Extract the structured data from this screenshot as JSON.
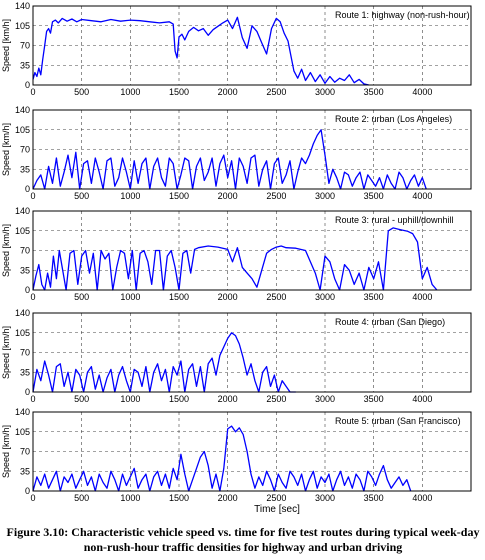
{
  "figure": {
    "caption": "Figure 3.10: Characteristic vehicle speed vs. time for five test routes during typical week-day non-rush-hour traffic densities for highway and urban driving",
    "xlabel": "Time [sec]"
  },
  "chart_data": [
    {
      "type": "line",
      "title": "Route 1: highway (non-rush-hour)",
      "ylabel": "Speed [km/h]",
      "xlabel": "",
      "xlim": [
        0,
        4500
      ],
      "ylim": [
        0,
        140
      ],
      "xticks": [
        0,
        500,
        1000,
        1500,
        2000,
        2500,
        3000,
        3500,
        4000
      ],
      "yticks": [
        0,
        35,
        70,
        105,
        140
      ],
      "grid": true,
      "color": "#0000ff",
      "series": [
        {
          "x": [
            0,
            20,
            40,
            60,
            80,
            100,
            120,
            140,
            160,
            180,
            200,
            230,
            260,
            300,
            350,
            400,
            450,
            500,
            600,
            700,
            800,
            900,
            1000,
            1100,
            1200,
            1300,
            1400,
            1440,
            1460,
            1480,
            1500,
            1530,
            1560,
            1600,
            1650,
            1700,
            1750,
            1800,
            1850,
            1900,
            1950,
            2000,
            2050,
            2100,
            2150,
            2200,
            2250,
            2300,
            2350,
            2400,
            2450,
            2500,
            2540,
            2580,
            2620,
            2650,
            2680,
            2720,
            2760,
            2800,
            2850,
            2900,
            2950,
            3000,
            3050,
            3100,
            3150,
            3200,
            3250,
            3300,
            3350,
            3400,
            3450
          ],
          "values": [
            10,
            22,
            15,
            30,
            18,
            45,
            70,
            95,
            100,
            92,
            112,
            115,
            110,
            118,
            113,
            117,
            112,
            116,
            114,
            112,
            116,
            113,
            115,
            114,
            112,
            110,
            112,
            108,
            60,
            48,
            85,
            90,
            80,
            95,
            102,
            96,
            100,
            88,
            98,
            104,
            110,
            115,
            100,
            120,
            84,
            65,
            105,
            95,
            75,
            55,
            100,
            118,
            112,
            92,
            78,
            52,
            25,
            12,
            28,
            8,
            22,
            6,
            18,
            3,
            15,
            5,
            12,
            8,
            18,
            4,
            10,
            2,
            0
          ]
        }
      ]
    },
    {
      "type": "line",
      "title": "Route 2: urban (Los Angeles)",
      "ylabel": "Speed [km/h]",
      "xlabel": "",
      "xlim": [
        0,
        4500
      ],
      "ylim": [
        0,
        140
      ],
      "xticks": [
        0,
        500,
        1000,
        1500,
        2000,
        2500,
        3000,
        3500,
        4000
      ],
      "yticks": [
        0,
        35,
        70,
        105,
        140
      ],
      "grid": true,
      "color": "#0000ff",
      "series": [
        {
          "x": [
            0,
            40,
            80,
            120,
            160,
            200,
            240,
            280,
            320,
            360,
            400,
            440,
            480,
            520,
            560,
            600,
            640,
            680,
            720,
            760,
            800,
            840,
            880,
            920,
            960,
            1000,
            1040,
            1080,
            1120,
            1160,
            1200,
            1240,
            1280,
            1320,
            1360,
            1400,
            1440,
            1480,
            1520,
            1560,
            1600,
            1640,
            1680,
            1720,
            1760,
            1800,
            1840,
            1880,
            1920,
            1960,
            2000,
            2040,
            2080,
            2120,
            2160,
            2200,
            2240,
            2280,
            2320,
            2360,
            2400,
            2440,
            2480,
            2520,
            2560,
            2600,
            2640,
            2680,
            2720,
            2760,
            2800,
            2840,
            2880,
            2920,
            2960,
            3000,
            3040,
            3080,
            3120,
            3160,
            3200,
            3240,
            3280,
            3320,
            3360,
            3400,
            3440,
            3480,
            3520,
            3560,
            3600,
            3640,
            3680,
            3720,
            3760,
            3800,
            3840,
            3880,
            3920,
            3960,
            4000,
            4040
          ],
          "values": [
            0,
            15,
            25,
            0,
            40,
            10,
            55,
            5,
            30,
            60,
            20,
            65,
            0,
            45,
            50,
            10,
            55,
            30,
            0,
            50,
            55,
            5,
            20,
            55,
            30,
            0,
            50,
            10,
            45,
            55,
            0,
            40,
            55,
            20,
            5,
            55,
            45,
            0,
            25,
            55,
            50,
            0,
            40,
            55,
            15,
            30,
            55,
            5,
            45,
            60,
            20,
            50,
            0,
            55,
            40,
            10,
            55,
            60,
            5,
            35,
            50,
            0,
            45,
            55,
            10,
            25,
            50,
            0,
            30,
            55,
            45,
            60,
            80,
            95,
            105,
            60,
            10,
            35,
            20,
            0,
            30,
            25,
            5,
            20,
            30,
            0,
            25,
            15,
            5,
            20,
            0,
            25,
            10,
            0,
            30,
            20,
            0,
            15,
            25,
            5,
            20,
            0
          ]
        }
      ]
    },
    {
      "type": "line",
      "title": "Route 3: rural - uphill/downhill",
      "ylabel": "Speed [km/h]",
      "xlabel": "",
      "xlim": [
        0,
        4500
      ],
      "ylim": [
        0,
        140
      ],
      "xticks": [
        0,
        500,
        1000,
        1500,
        2000,
        2500,
        3000,
        3500,
        4000
      ],
      "yticks": [
        0,
        35,
        70,
        105,
        140
      ],
      "grid": true,
      "color": "#0000ff",
      "series": [
        {
          "x": [
            0,
            30,
            60,
            90,
            120,
            150,
            180,
            210,
            240,
            270,
            300,
            340,
            380,
            420,
            460,
            500,
            540,
            580,
            620,
            660,
            700,
            740,
            780,
            820,
            860,
            900,
            940,
            980,
            1020,
            1060,
            1100,
            1140,
            1180,
            1220,
            1260,
            1300,
            1340,
            1380,
            1420,
            1460,
            1500,
            1540,
            1580,
            1620,
            1660,
            1700,
            1800,
            1900,
            2000,
            2050,
            2100,
            2150,
            2200,
            2250,
            2300,
            2350,
            2400,
            2450,
            2500,
            2550,
            2600,
            2700,
            2800,
            2900,
            2950,
            3000,
            3050,
            3100,
            3150,
            3200,
            3250,
            3300,
            3350,
            3400,
            3450,
            3500,
            3550,
            3600,
            3650,
            3700,
            3750,
            3800,
            3850,
            3900,
            3950,
            4000,
            4050,
            4100,
            4150
          ],
          "values": [
            0,
            25,
            45,
            10,
            0,
            30,
            5,
            60,
            20,
            70,
            40,
            0,
            65,
            70,
            10,
            60,
            70,
            30,
            65,
            0,
            70,
            55,
            65,
            0,
            40,
            70,
            65,
            20,
            70,
            0,
            65,
            70,
            50,
            10,
            70,
            70,
            0,
            60,
            70,
            40,
            0,
            65,
            70,
            30,
            72,
            75,
            78,
            76,
            72,
            50,
            75,
            40,
            30,
            20,
            5,
            35,
            65,
            72,
            76,
            78,
            75,
            74,
            70,
            30,
            0,
            60,
            50,
            20,
            0,
            45,
            35,
            10,
            30,
            0,
            40,
            20,
            50,
            0,
            105,
            110,
            108,
            106,
            104,
            100,
            85,
            20,
            40,
            10,
            0
          ]
        }
      ]
    },
    {
      "type": "line",
      "title": "Route 4: urban (San Diego)",
      "ylabel": "Speed [km/h]",
      "xlabel": "",
      "xlim": [
        0,
        4500
      ],
      "ylim": [
        0,
        140
      ],
      "xticks": [
        0,
        500,
        1000,
        1500,
        2000,
        2500,
        3000,
        3500,
        4000
      ],
      "yticks": [
        0,
        35,
        70,
        105,
        140
      ],
      "grid": true,
      "color": "#0000ff",
      "series": [
        {
          "x": [
            0,
            40,
            80,
            120,
            160,
            200,
            240,
            280,
            320,
            360,
            400,
            440,
            480,
            520,
            560,
            600,
            640,
            680,
            720,
            760,
            800,
            840,
            880,
            920,
            960,
            1000,
            1040,
            1080,
            1120,
            1160,
            1200,
            1240,
            1280,
            1320,
            1360,
            1400,
            1440,
            1480,
            1520,
            1560,
            1600,
            1640,
            1680,
            1720,
            1760,
            1800,
            1840,
            1880,
            1920,
            1960,
            2000,
            2040,
            2080,
            2120,
            2160,
            2200,
            2240,
            2280,
            2320,
            2360,
            2400,
            2440,
            2480,
            2520,
            2560,
            2600,
            2640,
            2700
          ],
          "values": [
            0,
            40,
            20,
            55,
            30,
            0,
            45,
            50,
            10,
            35,
            0,
            40,
            30,
            0,
            35,
            45,
            5,
            30,
            0,
            25,
            40,
            0,
            30,
            45,
            20,
            0,
            40,
            35,
            10,
            45,
            0,
            35,
            50,
            20,
            40,
            0,
            45,
            30,
            55,
            0,
            40,
            50,
            10,
            45,
            0,
            50,
            60,
            30,
            65,
            80,
            95,
            105,
            100,
            85,
            60,
            30,
            50,
            20,
            0,
            35,
            45,
            10,
            30,
            0,
            20,
            10,
            0,
            0
          ]
        }
      ]
    },
    {
      "type": "line",
      "title": "Route 5: urban (San Francisco)",
      "ylabel": "Speed [km/h]",
      "xlabel": "Time [sec]",
      "xlim": [
        0,
        4500
      ],
      "ylim": [
        0,
        140
      ],
      "xticks": [
        0,
        500,
        1000,
        1500,
        2000,
        2500,
        3000,
        3500,
        4000
      ],
      "yticks": [
        0,
        35,
        70,
        105,
        140
      ],
      "grid": true,
      "color": "#0000ff",
      "series": [
        {
          "x": [
            0,
            40,
            80,
            120,
            160,
            200,
            240,
            280,
            320,
            360,
            400,
            440,
            480,
            520,
            560,
            600,
            640,
            680,
            720,
            760,
            800,
            840,
            880,
            920,
            960,
            1000,
            1040,
            1080,
            1120,
            1160,
            1200,
            1240,
            1280,
            1320,
            1360,
            1400,
            1440,
            1480,
            1520,
            1560,
            1600,
            1640,
            1680,
            1720,
            1760,
            1800,
            1840,
            1880,
            1920,
            1960,
            2000,
            2040,
            2080,
            2120,
            2160,
            2200,
            2240,
            2280,
            2320,
            2360,
            2400,
            2440,
            2480,
            2520,
            2560,
            2600,
            2640,
            2680,
            2720,
            2760,
            2800,
            2840,
            2880,
            2920,
            2960,
            3000,
            3040,
            3080,
            3120,
            3160,
            3200,
            3240,
            3280,
            3320,
            3360,
            3400,
            3440,
            3480,
            3520,
            3560,
            3600,
            3640,
            3680,
            3720,
            3760,
            3800,
            3840,
            3880
          ],
          "values": [
            0,
            25,
            10,
            30,
            5,
            20,
            35,
            0,
            25,
            15,
            30,
            5,
            20,
            35,
            10,
            25,
            0,
            30,
            15,
            5,
            35,
            20,
            0,
            30,
            10,
            25,
            40,
            5,
            20,
            30,
            0,
            25,
            35,
            10,
            30,
            5,
            40,
            20,
            65,
            30,
            0,
            20,
            40,
            60,
            70,
            45,
            5,
            30,
            0,
            40,
            110,
            115,
            105,
            112,
            100,
            70,
            30,
            5,
            25,
            10,
            35,
            20,
            0,
            30,
            15,
            5,
            35,
            25,
            10,
            30,
            0,
            20,
            35,
            5,
            25,
            15,
            30,
            0,
            20,
            35,
            10,
            25,
            5,
            30,
            20,
            0,
            35,
            25,
            10,
            30,
            45,
            20,
            5,
            15,
            25,
            10,
            20,
            0
          ]
        }
      ]
    }
  ]
}
